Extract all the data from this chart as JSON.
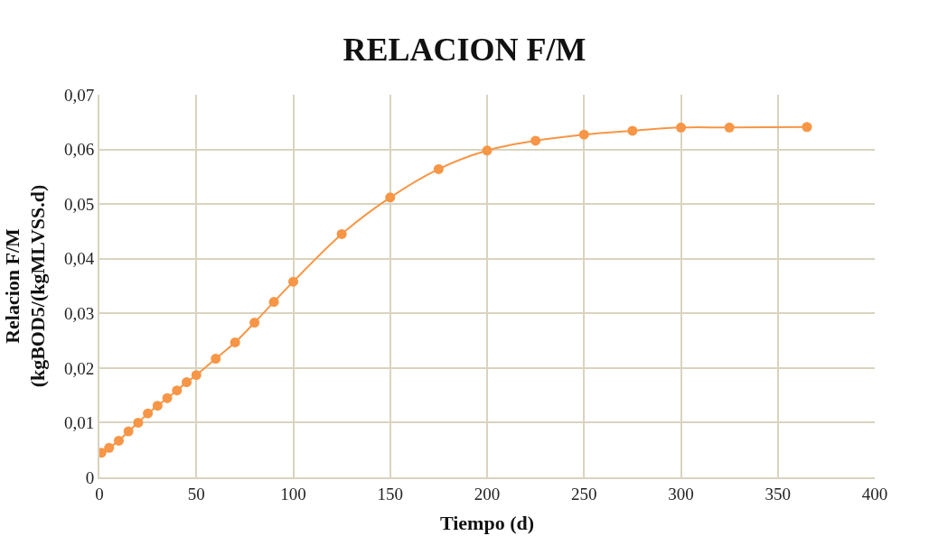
{
  "chart_data": {
    "type": "line",
    "title": "RELACION F/M",
    "xlabel": "Tiempo (d)",
    "ylabel": "Relacion F/M\n(kgBOD5/(kgMLVSS.d)",
    "x": [
      1,
      5,
      10,
      15,
      20,
      25,
      30,
      35,
      40,
      45,
      50,
      60,
      70,
      80,
      90,
      100,
      125,
      150,
      175,
      200,
      225,
      250,
      275,
      300,
      325,
      365
    ],
    "series": [
      {
        "color": "#f79646",
        "values": [
          0.0045,
          0.0054,
          0.0067,
          0.0084,
          0.01,
          0.0117,
          0.0131,
          0.0145,
          0.0159,
          0.0174,
          0.0187,
          0.0217,
          0.0247,
          0.0283,
          0.0321,
          0.0358,
          0.0445,
          0.0512,
          0.0564,
          0.0598,
          0.0616,
          0.0627,
          0.0634,
          0.064,
          0.064,
          0.0641
        ]
      }
    ],
    "xlim": [
      0,
      400
    ],
    "xticks": [
      0,
      50,
      100,
      150,
      200,
      250,
      300,
      350,
      400
    ],
    "ylim": [
      0,
      0.07
    ],
    "yticks": [
      {
        "value": 0,
        "label": "0"
      },
      {
        "value": 0.01,
        "label": "0,01"
      },
      {
        "value": 0.02,
        "label": "0,02"
      },
      {
        "value": 0.03,
        "label": "0,03"
      },
      {
        "value": 0.04,
        "label": "0,04"
      },
      {
        "value": 0.05,
        "label": "0,05"
      },
      {
        "value": 0.06,
        "label": "0,06"
      },
      {
        "value": 0.07,
        "label": "0,07"
      }
    ],
    "grid": true,
    "marker": "circle",
    "line_style": "solid"
  }
}
